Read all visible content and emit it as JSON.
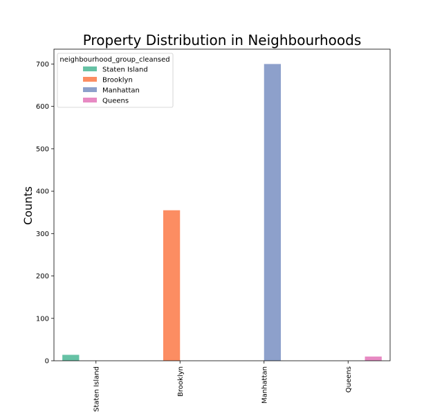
{
  "chart_data": {
    "type": "bar",
    "title": "Property Distribution in Neighbourhoods",
    "xlabel": "",
    "ylabel": "Counts",
    "categories": [
      "Staten Island",
      "Brooklyn",
      "Manhattan",
      "Queens"
    ],
    "series": [
      {
        "name": "Staten Island",
        "color": "#66c2a5",
        "values": [
          14,
          0,
          0,
          0
        ]
      },
      {
        "name": "Brooklyn",
        "color": "#fc8d62",
        "values": [
          0,
          355,
          0,
          0
        ]
      },
      {
        "name": "Manhattan",
        "color": "#8da0cb",
        "values": [
          0,
          0,
          700,
          0
        ]
      },
      {
        "name": "Queens",
        "color": "#e78ac3",
        "values": [
          0,
          0,
          0,
          10
        ]
      }
    ],
    "yticks": [
      0,
      100,
      200,
      300,
      400,
      500,
      600,
      700
    ],
    "ylim": [
      0,
      735
    ],
    "grid": false,
    "legend": {
      "title": "neighbourhood_group_cleansed",
      "placement": "top-left"
    }
  }
}
